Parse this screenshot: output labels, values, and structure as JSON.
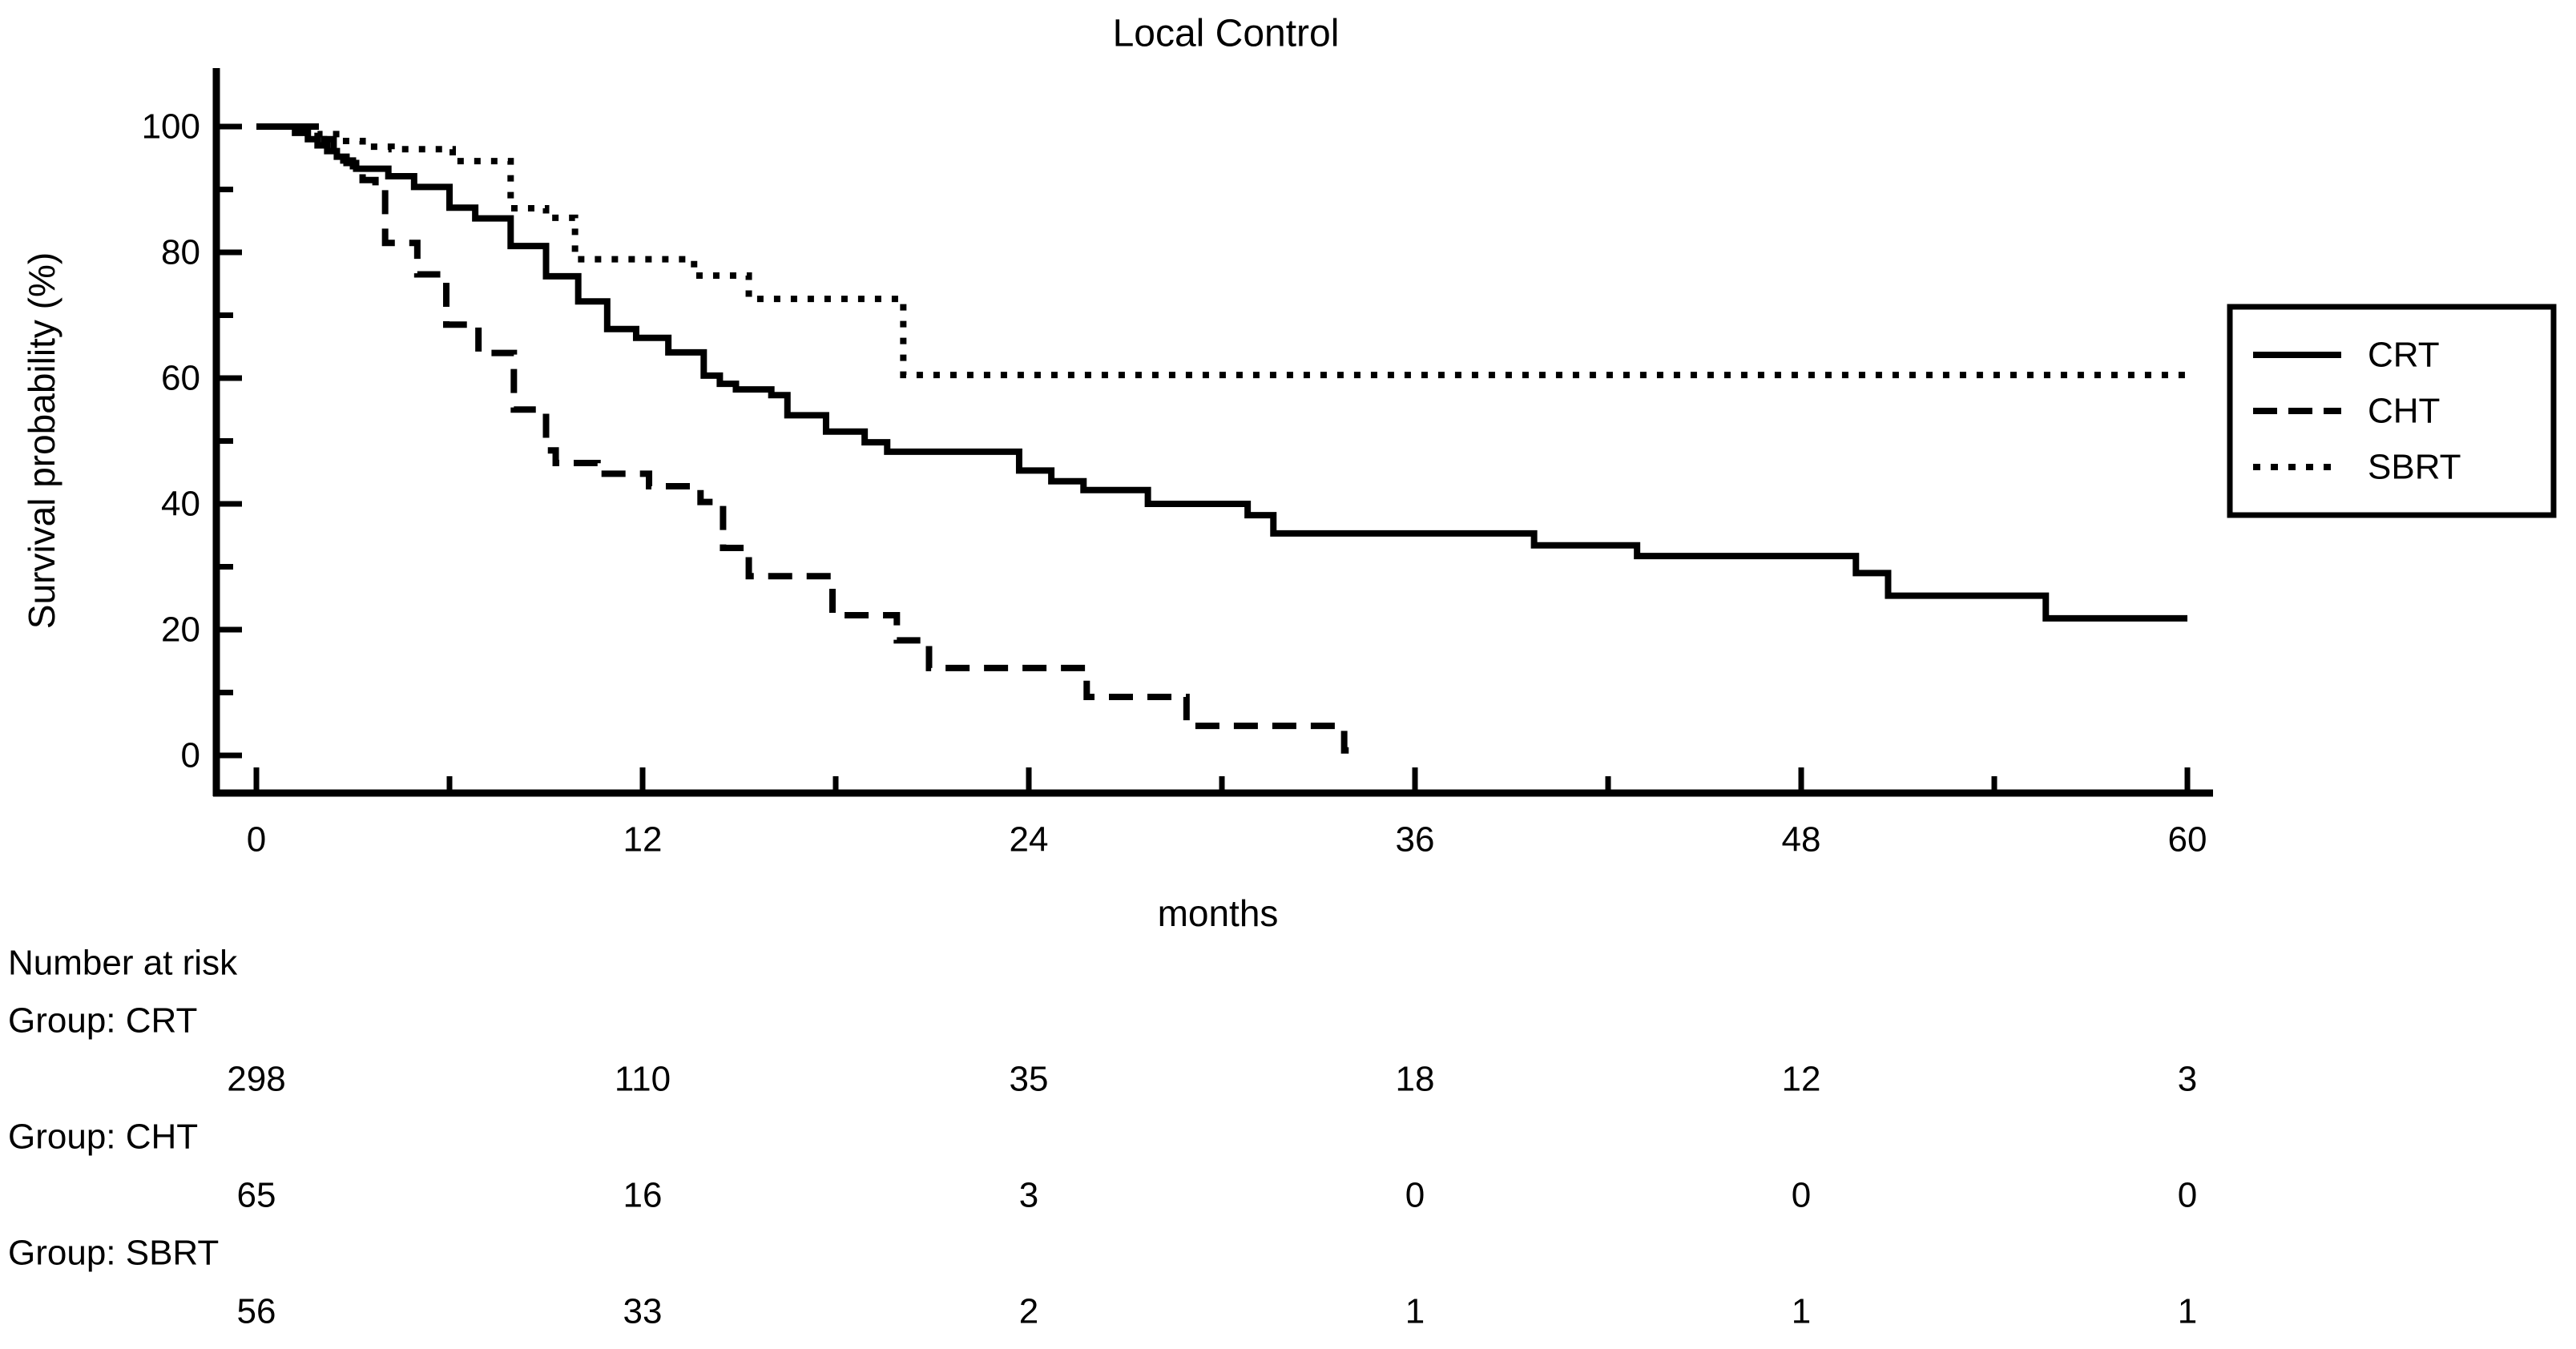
{
  "background": "#ffffff",
  "foreground": "#000000",
  "chart_data": {
    "type": "line",
    "subtype": "kaplan-meier-step",
    "title": "Local Control",
    "xlabel": "months",
    "ylabel": "Survival probability (%)",
    "xlim": [
      0,
      60
    ],
    "ylim": [
      0,
      100
    ],
    "x_major_ticks": [
      0,
      12,
      24,
      36,
      48,
      60
    ],
    "x_minor_ticks": [
      6,
      18,
      30,
      42,
      54
    ],
    "y_major_ticks": [
      0,
      20,
      40,
      60,
      80,
      100
    ],
    "y_minor_ticks": [
      10,
      30,
      50,
      70,
      90
    ],
    "grid": false,
    "legend_position": "right",
    "line_color": "#000000",
    "series": [
      {
        "name": "CRT",
        "style": "solid",
        "end_month": 60,
        "points": [
          [
            0,
            100
          ],
          [
            1.2,
            99.0
          ],
          [
            1.6,
            98.0
          ],
          [
            1.9,
            97.0
          ],
          [
            2.2,
            96.1
          ],
          [
            2.5,
            95.2
          ],
          [
            2.8,
            94.2
          ],
          [
            3.1,
            93.3
          ],
          [
            4.1,
            92.1
          ],
          [
            4.9,
            90.4
          ],
          [
            6.0,
            87.1
          ],
          [
            6.8,
            85.4
          ],
          [
            7.9,
            81.0
          ],
          [
            9.0,
            76.2
          ],
          [
            10.0,
            72.2
          ],
          [
            10.9,
            67.8
          ],
          [
            11.8,
            66.4
          ],
          [
            12.8,
            64.1
          ],
          [
            13.9,
            60.4
          ],
          [
            14.4,
            59.1
          ],
          [
            14.9,
            58.2
          ],
          [
            16.0,
            57.3
          ],
          [
            16.5,
            54.1
          ],
          [
            17.7,
            51.5
          ],
          [
            18.9,
            49.8
          ],
          [
            19.6,
            48.3
          ],
          [
            23.7,
            45.3
          ],
          [
            24.7,
            43.6
          ],
          [
            25.7,
            42.2
          ],
          [
            27.7,
            40.0
          ],
          [
            30.8,
            38.2
          ],
          [
            31.6,
            35.3
          ],
          [
            39.7,
            33.4
          ],
          [
            42.9,
            31.7
          ],
          [
            49.7,
            29.0
          ],
          [
            50.7,
            25.4
          ],
          [
            55.6,
            21.8
          ]
        ]
      },
      {
        "name": "CHT",
        "style": "dashed",
        "end_month": 34.3,
        "points": [
          [
            0,
            100
          ],
          [
            2.1,
            98.0
          ],
          [
            2.4,
            96.2
          ],
          [
            2.7,
            94.6
          ],
          [
            3.0,
            93.0
          ],
          [
            3.3,
            91.5
          ],
          [
            3.7,
            90.0
          ],
          [
            4.0,
            81.5
          ],
          [
            5.0,
            76.5
          ],
          [
            5.9,
            68.5
          ],
          [
            6.9,
            64.0
          ],
          [
            8.0,
            55.0
          ],
          [
            9.0,
            48.5
          ],
          [
            9.3,
            46.5
          ],
          [
            10.6,
            44.8
          ],
          [
            12.2,
            42.8
          ],
          [
            13.8,
            40.3
          ],
          [
            14.5,
            33.0
          ],
          [
            15.3,
            28.5
          ],
          [
            17.9,
            22.3
          ],
          [
            19.9,
            18.3
          ],
          [
            20.9,
            13.9
          ],
          [
            25.8,
            9.3
          ],
          [
            28.9,
            4.7
          ],
          [
            33.8,
            0.8
          ]
        ]
      },
      {
        "name": "SBRT",
        "style": "dotted",
        "end_month": 60,
        "points": [
          [
            0,
            100
          ],
          [
            1.9,
            98.8
          ],
          [
            2.6,
            97.7
          ],
          [
            3.3,
            96.8
          ],
          [
            4.2,
            96.4
          ],
          [
            6.1,
            94.5
          ],
          [
            7.9,
            87.0
          ],
          [
            9.0,
            85.5
          ],
          [
            9.9,
            78.9
          ],
          [
            13.6,
            76.3
          ],
          [
            15.3,
            72.6
          ],
          [
            20.1,
            60.5
          ]
        ]
      }
    ],
    "number_at_risk": {
      "header": "Number at risk",
      "time_points": [
        0,
        12,
        24,
        36,
        48,
        60
      ],
      "groups": [
        {
          "label": "Group: CRT",
          "counts": [
            298,
            110,
            35,
            18,
            12,
            3
          ]
        },
        {
          "label": "Group: CHT",
          "counts": [
            65,
            16,
            3,
            0,
            0,
            0
          ]
        },
        {
          "label": "Group: SBRT",
          "counts": [
            56,
            33,
            2,
            1,
            1,
            1
          ]
        }
      ]
    }
  },
  "legend": {
    "items": [
      {
        "label": "CRT",
        "line_style": "solid"
      },
      {
        "label": "CHT",
        "line_style": "dashed"
      },
      {
        "label": "SBRT",
        "line_style": "dotted"
      }
    ]
  }
}
